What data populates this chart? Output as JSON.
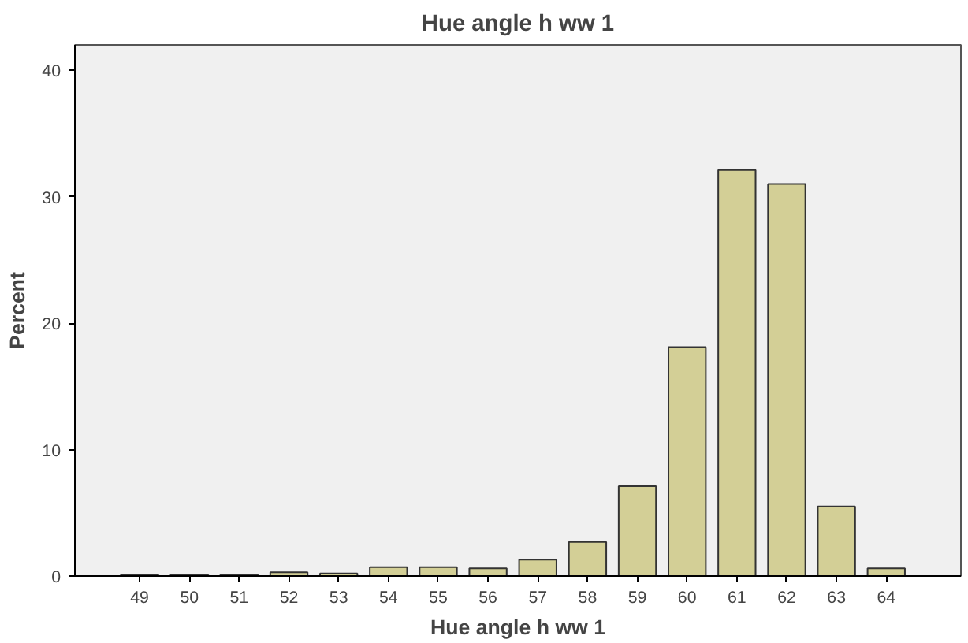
{
  "chart_data": {
    "type": "bar",
    "title": "Hue angle h ww 1",
    "xlabel": "Hue angle h ww 1",
    "ylabel": "Percent",
    "categories": [
      "49",
      "50",
      "51",
      "52",
      "53",
      "54",
      "55",
      "56",
      "57",
      "58",
      "59",
      "60",
      "61",
      "62",
      "63",
      "64"
    ],
    "values": [
      0.1,
      0.1,
      0.1,
      0.3,
      0.2,
      0.7,
      0.7,
      0.6,
      1.3,
      2.7,
      7.1,
      18.1,
      32.1,
      31.0,
      5.5,
      0.6
    ],
    "color": "#d3cf96",
    "ylim": [
      0,
      42
    ],
    "yticks": [
      0,
      10,
      20,
      30,
      40
    ],
    "grid": false
  }
}
